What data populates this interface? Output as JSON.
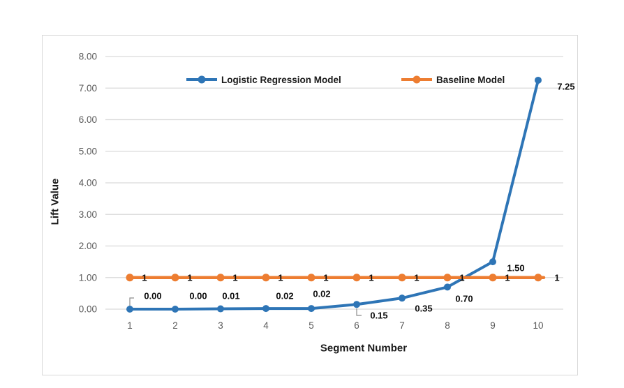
{
  "chart_data": {
    "type": "line",
    "title": "",
    "xlabel": "Segment Number",
    "ylabel": "Lift Value",
    "categories": [
      1,
      2,
      3,
      4,
      5,
      6,
      7,
      8,
      9,
      10
    ],
    "x_tick_labels": [
      "1",
      "2",
      "3",
      "4",
      "5",
      "6",
      "7",
      "8",
      "9",
      "10"
    ],
    "y_tick_labels": [
      "0.00",
      "1.00",
      "2.00",
      "3.00",
      "4.00",
      "5.00",
      "6.00",
      "7.00",
      "8.00"
    ],
    "ylim": [
      0,
      8
    ],
    "grid": true,
    "legend_position": "top-center-inside",
    "series": [
      {
        "name": "Logistic Regression Model",
        "color": "#2E75B6",
        "marker": "circle",
        "values": [
          0.0,
          0.0,
          0.01,
          0.02,
          0.02,
          0.15,
          0.35,
          0.7,
          1.5,
          7.25
        ],
        "data_labels": [
          "0.00",
          "0.00",
          "0.01",
          "0.02",
          "0.02",
          "0.15",
          "0.35",
          "0.70",
          "1.50",
          "7.25"
        ]
      },
      {
        "name": "Baseline Model",
        "color": "#ED7D31",
        "marker": "circle",
        "values": [
          1,
          1,
          1,
          1,
          1,
          1,
          1,
          1,
          1,
          1
        ],
        "data_labels": [
          "1",
          "1",
          "1",
          "1",
          "1",
          "1",
          "1",
          "1",
          "1",
          "1"
        ]
      }
    ],
    "colors": {
      "grid": "#D9D9D9",
      "tick_text": "#595959",
      "data_label_text": "#0D0D0D",
      "frame_border": "#D9D9D9",
      "leader_line": "#8C8C8C"
    }
  }
}
